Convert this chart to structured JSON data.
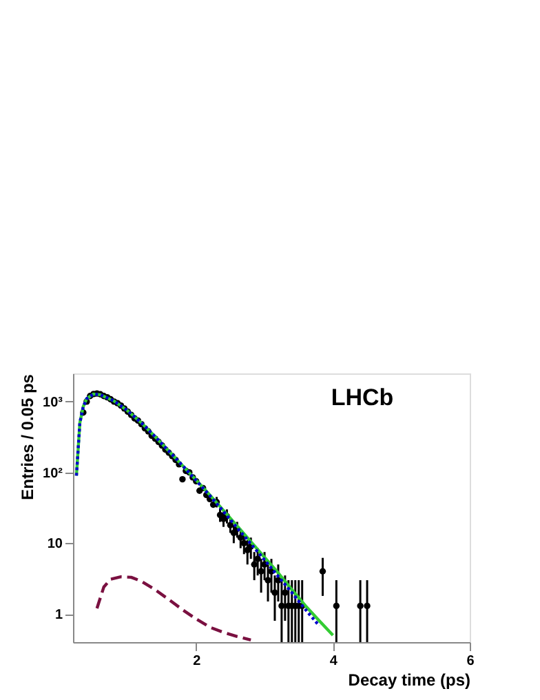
{
  "chart_data": {
    "type": "line",
    "xlabel": "Decay time (ps)",
    "ylabel": "Entries / 0.05 ps",
    "annotations": [
      "LHCb"
    ],
    "xlim": [
      0.2,
      6
    ],
    "xticks": [
      2,
      4,
      6
    ],
    "ylim": [
      0.4,
      2500
    ],
    "yticks": [
      1,
      10,
      {
        "value": 100,
        "label": "10²"
      },
      {
        "value": 1000,
        "label": "10³"
      }
    ],
    "log": "y",
    "grid": false,
    "series": [
      {
        "type": "scatter",
        "color": "#000000",
        "marker": "circle",
        "x": [
          0.35,
          0.4,
          0.45,
          0.5,
          0.55,
          0.6,
          0.65,
          0.7,
          0.75,
          0.8,
          0.85,
          0.9,
          0.95,
          1.0,
          1.05,
          1.1,
          1.15,
          1.2,
          1.25,
          1.3,
          1.35,
          1.4,
          1.45,
          1.5,
          1.55,
          1.6,
          1.65,
          1.7,
          1.75,
          1.8,
          1.85,
          1.9,
          1.95,
          2.0,
          2.05,
          2.1,
          2.15,
          2.2,
          2.25,
          2.3,
          2.35,
          2.4,
          2.45,
          2.5,
          2.55,
          2.6,
          2.65,
          2.7,
          2.75,
          2.8,
          2.85,
          2.9,
          2.95,
          3.0,
          3.05,
          3.1,
          3.15,
          3.2,
          3.25,
          3.3,
          3.35,
          3.4,
          3.45,
          3.5,
          3.55,
          3.85,
          4.05,
          4.4,
          4.5
        ],
        "values": [
          700,
          1000,
          1200,
          1280,
          1300,
          1270,
          1200,
          1150,
          1080,
          1000,
          950,
          880,
          800,
          720,
          650,
          580,
          540,
          480,
          420,
          380,
          330,
          300,
          270,
          240,
          210,
          190,
          170,
          150,
          130,
          80,
          105,
          100,
          85,
          75,
          55,
          60,
          48,
          42,
          35,
          38,
          25,
          22,
          24,
          18,
          14,
          16,
          12,
          10,
          8,
          9,
          5,
          6,
          4,
          5,
          3,
          4,
          2,
          3,
          1.3,
          2,
          1.3,
          1.3,
          1.3,
          1.3,
          1.3,
          4,
          1.3,
          1.3,
          1.3
        ],
        "errors": [
          null,
          null,
          null,
          null,
          null,
          null,
          null,
          null,
          null,
          null,
          null,
          null,
          null,
          null,
          null,
          null,
          null,
          null,
          null,
          null,
          null,
          null,
          null,
          null,
          null,
          null,
          null,
          null,
          null,
          null,
          null,
          null,
          null,
          null,
          null,
          null,
          null,
          null,
          null,
          [
            32,
            45
          ],
          [
            20,
            31
          ],
          [
            17,
            28
          ],
          [
            19,
            30
          ],
          [
            14,
            23
          ],
          [
            10,
            18
          ],
          [
            12,
            20
          ],
          [
            8.5,
            16
          ],
          [
            7,
            14
          ],
          [
            5,
            11
          ],
          [
            6,
            12
          ],
          [
            3,
            7.5
          ],
          [
            3.5,
            8.5
          ],
          [
            2,
            6
          ],
          [
            3,
            7.5
          ],
          [
            1.5,
            5
          ],
          [
            2,
            6
          ],
          [
            0.8,
            3.5
          ],
          [
            1.5,
            5
          ],
          [
            0.4,
            3
          ],
          [
            0.8,
            3.5
          ],
          [
            0.4,
            3
          ],
          [
            0.4,
            3
          ],
          [
            0.4,
            3
          ],
          [
            0.4,
            3
          ],
          [
            0.4,
            3
          ],
          [
            1.8,
            6.2
          ],
          [
            0.4,
            3
          ],
          [
            0.4,
            3
          ],
          [
            0.4,
            3
          ]
        ]
      },
      {
        "color": "#33cc33",
        "line_style": "solid",
        "x": [
          0.25,
          0.3,
          0.35,
          0.4,
          0.5,
          0.6,
          0.8,
          1.0,
          1.2,
          1.4,
          1.6,
          1.8,
          2.0,
          2.2,
          2.4,
          2.6,
          2.8,
          3.0,
          3.2,
          3.4,
          3.6,
          3.8,
          4.0
        ],
        "values": [
          90,
          500,
          850,
          1100,
          1280,
          1250,
          1020,
          740,
          500,
          320,
          200,
          125,
          78,
          48,
          29,
          17.5,
          10.5,
          6.3,
          3.8,
          2.2,
          1.3,
          0.8,
          0.5
        ]
      },
      {
        "color": "#0000cc",
        "line_style": "dotted",
        "x": [
          0.25,
          0.3,
          0.35,
          0.4,
          0.5,
          0.6,
          0.8,
          1.0,
          1.2,
          1.4,
          1.6,
          1.8,
          2.0,
          2.2,
          2.4,
          2.6,
          2.8,
          3.0,
          3.2,
          3.4,
          3.6,
          3.8
        ],
        "values": [
          90,
          500,
          850,
          1100,
          1280,
          1250,
          1020,
          740,
          500,
          320,
          200,
          125,
          77,
          47,
          28,
          16.5,
          9.8,
          5.8,
          3.4,
          2.0,
          1.15,
          0.68
        ]
      },
      {
        "color": "#7a1040",
        "line_style": "dashed",
        "x": [
          0.55,
          0.65,
          0.75,
          0.9,
          1.05,
          1.2,
          1.4,
          1.6,
          1.8,
          2.0,
          2.2,
          2.4,
          2.6,
          2.8
        ],
        "values": [
          1.2,
          2.4,
          3.1,
          3.35,
          3.3,
          2.9,
          2.2,
          1.6,
          1.15,
          0.85,
          0.65,
          0.55,
          0.48,
          0.43
        ]
      }
    ]
  }
}
